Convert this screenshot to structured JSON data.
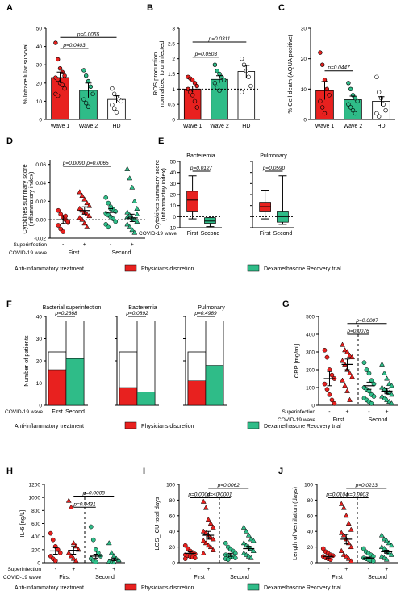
{
  "colors": {
    "red": "#e8211f",
    "green": "#2fbc88",
    "white": "#ffffff",
    "black": "#000000"
  },
  "legend": {
    "title": "Anti-inflammatory treatment",
    "items": [
      {
        "label": "Physicians discretion",
        "color": "#e8211f"
      },
      {
        "label": "Dexamethasone Recovery trial",
        "color": "#2fbc88"
      }
    ]
  },
  "chart_data": [
    {
      "letter": "A",
      "type": "bar",
      "ylabel": "% Intracellular survival",
      "ylim": [
        0,
        50
      ],
      "yticks": [
        0,
        10,
        20,
        30,
        40,
        50
      ],
      "categories": [
        "Wave 1",
        "Wave 2",
        "HD"
      ],
      "values": [
        23,
        16,
        11
      ],
      "errors": [
        3,
        4,
        2
      ],
      "points": [
        [
          42,
          33,
          28,
          26,
          24,
          23,
          22,
          20,
          19,
          17,
          14,
          13
        ],
        [
          27,
          24,
          21,
          18,
          14,
          11,
          9,
          7
        ],
        [
          17,
          14,
          12,
          11,
          10,
          8,
          6,
          4
        ]
      ],
      "pvalues": [
        {
          "text": "p=0.0403",
          "from": 0,
          "to": 1,
          "y": 39
        },
        {
          "text": "p=0.0055",
          "from": 0,
          "to": 2,
          "y": 45
        }
      ]
    },
    {
      "letter": "B",
      "type": "bar",
      "ylabel": "ROS production\nnormalized to uninfected",
      "ylim": [
        0,
        3
      ],
      "yticks": [
        0,
        0.5,
        1,
        1.5,
        2,
        2.5,
        3
      ],
      "categories": [
        "Wave 1",
        "Wave 2",
        "HD"
      ],
      "values": [
        1.0,
        1.32,
        1.58
      ],
      "errors": [
        0.1,
        0.12,
        0.2
      ],
      "points": [
        [
          1.4,
          1.35,
          1.3,
          1.2,
          1.1,
          1.0,
          0.9,
          0.8,
          0.6,
          0.4
        ],
        [
          1.8,
          1.6,
          1.5,
          1.4,
          1.3,
          1.2,
          1.05,
          0.95
        ],
        [
          2.0,
          1.8,
          1.6,
          1.4,
          1.1,
          0.9
        ]
      ],
      "pvalues": [
        {
          "text": "p=0.0503",
          "from": 0,
          "to": 1,
          "y": 2.05
        },
        {
          "text": "p=0.0311",
          "from": 0,
          "to": 2,
          "y": 2.55
        }
      ],
      "dotted": 1.0
    },
    {
      "letter": "C",
      "type": "bar",
      "ylabel": "% Cell death (AQUA positive)",
      "ylim": [
        0,
        30
      ],
      "yticks": [
        0,
        10,
        20,
        30
      ],
      "categories": [
        "Wave 1",
        "Wave 2",
        "HD"
      ],
      "values": [
        9.5,
        6.5,
        6
      ],
      "errors": [
        3,
        1.2,
        1.5
      ],
      "points": [
        [
          22,
          18,
          13,
          10,
          8,
          6,
          4,
          2
        ],
        [
          12,
          10,
          8,
          7,
          6,
          5,
          4,
          3,
          2
        ],
        [
          14,
          9,
          7,
          5,
          3,
          2,
          1
        ]
      ],
      "pvalues": [
        {
          "text": "p=0.0447",
          "from": 0,
          "to": 1,
          "y": 16
        }
      ]
    },
    {
      "letter": "D",
      "type": "dot",
      "ylabel": "Cytokines summary score\n(inflammatory index)",
      "ylim": [
        -0.02,
        0.065
      ],
      "yticks": [
        -0.02,
        0,
        0.02,
        0.04,
        0.06
      ],
      "ytick_labels": [
        "-0.02",
        "0.00",
        "0.02",
        "0.04",
        "0.06"
      ],
      "groups": [
        {
          "color": "#e8211f",
          "shape": "circle",
          "mean": 0.0,
          "sem": 0.004,
          "points": [
            0.01,
            0.006,
            0.003,
            0.0,
            -0.003,
            -0.006,
            -0.01,
            -0.013,
            0.004,
            -0.002
          ]
        },
        {
          "color": "#e8211f",
          "shape": "triangle",
          "mean": 0.01,
          "sem": 0.004,
          "points": [
            0.03,
            0.026,
            0.022,
            0.018,
            0.015,
            0.012,
            0.01,
            0.008,
            0.006,
            0.004,
            0.002,
            0.0,
            -0.004,
            -0.008
          ]
        },
        {
          "color": "#2fbc88",
          "shape": "circle",
          "mean": 0.008,
          "sem": 0.004,
          "points": [
            0.024,
            0.018,
            0.014,
            0.011,
            0.009,
            0.007,
            0.005,
            0.003,
            0.001,
            -0.002,
            -0.005,
            -0.008,
            0.012
          ]
        },
        {
          "color": "#2fbc88",
          "shape": "triangle",
          "mean": 0.002,
          "sem": 0.004,
          "points": [
            0.055,
            0.045,
            0.035,
            0.02,
            0.012,
            0.008,
            0.005,
            0.002,
            0.0,
            -0.002,
            -0.005,
            -0.008,
            -0.011,
            -0.014,
            0.006,
            0.003
          ]
        }
      ],
      "pvalues": [
        {
          "text": "p=0.0090",
          "from": 0,
          "to": 1,
          "y": 0.058
        },
        {
          "text": "p=0.0065",
          "from": 1,
          "to": 2,
          "y": 0.058
        }
      ],
      "dotted": 0,
      "rows": [
        {
          "label": "Superinfection",
          "ticks": [
            "-",
            "+",
            "-",
            "+"
          ]
        },
        {
          "label": "COVID-19 wave",
          "ticks": [
            "First",
            "Second"
          ]
        }
      ]
    },
    {
      "letter": "E",
      "type": "box",
      "ylabel": "Cytokines summary score\n(Inflammatoy index)",
      "ylim": [
        -10,
        50
      ],
      "yticks": [
        -10,
        0,
        10,
        20,
        30,
        40,
        50
      ],
      "subplots": [
        {
          "title": "Bacteremia",
          "pvalue": "p=0.0127",
          "boxes": [
            {
              "color": "#e8211f",
              "min": -2,
              "q1": 5,
              "med": 15,
              "q3": 23,
              "max": 37
            },
            {
              "color": "#2fbc88",
              "min": -9,
              "q1": -6,
              "med": -4,
              "q3": -1,
              "max": -1
            }
          ]
        },
        {
          "title": "Pulmonary",
          "pvalue": "p=0.0590",
          "boxes": [
            {
              "color": "#e8211f",
              "min": -2,
              "q1": 5,
              "med": 9,
              "q3": 13,
              "max": 24
            },
            {
              "color": "#2fbc88",
              "min": -7,
              "q1": -5,
              "med": 0,
              "q3": 5,
              "max": 37
            }
          ]
        }
      ],
      "xlabel": "COVID-19 wave",
      "ticks": [
        "First",
        "Second"
      ],
      "dotted": 0
    },
    {
      "letter": "F",
      "type": "stacked-bar",
      "ylabel": "Number of patients",
      "ylim": [
        0,
        40
      ],
      "yticks": [
        0,
        10,
        20,
        30,
        40
      ],
      "subplots": [
        {
          "title": "Bacterial superinfection",
          "pvalue": "p=0.2668",
          "bars": [
            {
              "total": 24,
              "filled": 16,
              "color": "#e8211f"
            },
            {
              "total": 38,
              "filled": 21,
              "color": "#2fbc88"
            }
          ]
        },
        {
          "title": "Bacteremia",
          "pvalue": "p=0.0892",
          "bars": [
            {
              "total": 24,
              "filled": 8,
              "color": "#e8211f"
            },
            {
              "total": 38,
              "filled": 6,
              "color": "#2fbc88"
            }
          ]
        },
        {
          "title": "Pulmonary",
          "pvalue": "p=0.4989",
          "bars": [
            {
              "total": 24,
              "filled": 11,
              "color": "#e8211f"
            },
            {
              "total": 38,
              "filled": 18,
              "color": "#2fbc88"
            }
          ]
        }
      ],
      "xlabel": "COVID-19 wave",
      "ticks": [
        "First",
        "Second"
      ]
    },
    {
      "letter": "G",
      "type": "dot",
      "ylabel": "CRP [mg/ml]",
      "ylim": [
        0,
        500
      ],
      "yticks": [
        0,
        100,
        200,
        300,
        400,
        500
      ],
      "groups": [
        {
          "color": "#e8211f",
          "shape": "circle",
          "mean": 150,
          "sem": 40,
          "points": [
            310,
            270,
            200,
            170,
            150,
            120,
            90,
            60,
            30,
            10
          ]
        },
        {
          "color": "#e8211f",
          "shape": "triangle",
          "mean": 230,
          "sem": 30,
          "points": [
            340,
            310,
            300,
            280,
            270,
            250,
            230,
            200,
            180,
            160,
            140,
            110,
            80,
            30
          ]
        },
        {
          "color": "#2fbc88",
          "shape": "circle",
          "mean": 110,
          "sem": 20,
          "points": [
            240,
            200,
            180,
            140,
            120,
            100,
            90,
            80,
            60,
            50,
            40,
            30,
            20,
            10
          ]
        },
        {
          "color": "#2fbc88",
          "shape": "triangle",
          "mean": 80,
          "sem": 15,
          "points": [
            230,
            180,
            150,
            120,
            110,
            100,
            90,
            80,
            70,
            60,
            50,
            40,
            30,
            20,
            10
          ]
        }
      ],
      "pvalues": [
        {
          "text": "p=0.0076",
          "from": 1,
          "to": 2,
          "y": 400
        },
        {
          "text": "p=0.0007",
          "from": 1,
          "to": 3,
          "y": 460
        }
      ],
      "rows": [
        {
          "label": "Superinfection",
          "ticks": [
            "-",
            "+",
            "-",
            "+"
          ]
        },
        {
          "label": "COVID-19 wave",
          "ticks": [
            "First",
            "Second"
          ]
        }
      ]
    },
    {
      "letter": "H",
      "type": "dot",
      "ylabel": "IL-6 [ng/L]",
      "ylim": [
        0,
        1200
      ],
      "yticks": [
        0,
        200,
        400,
        600,
        800,
        1000,
        1200
      ],
      "groups": [
        {
          "color": "#e8211f",
          "shape": "circle",
          "mean": 180,
          "sem": 50,
          "points": [
            450,
            350,
            250,
            200,
            150,
            100,
            60,
            30
          ]
        },
        {
          "color": "#e8211f",
          "shape": "triangle",
          "mean": 190,
          "sem": 60,
          "points": [
            950,
            850,
            300,
            250,
            200,
            150,
            100,
            60,
            30
          ]
        },
        {
          "color": "#2fbc88",
          "shape": "circle",
          "mean": 100,
          "sem": 30,
          "points": [
            550,
            350,
            200,
            150,
            100,
            60,
            30,
            10
          ]
        },
        {
          "color": "#2fbc88",
          "shape": "triangle",
          "mean": 50,
          "sem": 20,
          "points": [
            300,
            150,
            100,
            60,
            40,
            20,
            10,
            5
          ]
        }
      ],
      "pvalues": [
        {
          "text": "p=0.0431",
          "from": 1,
          "to": 2,
          "y": 850
        },
        {
          "text": "p=0.0005",
          "from": 1,
          "to": 3,
          "y": 1020
        }
      ],
      "rows": [
        {
          "label": "Superinfection",
          "ticks": [
            "-",
            "+",
            "-",
            "+"
          ]
        },
        {
          "label": "COVID-19 wave",
          "ticks": [
            "First",
            "Second"
          ]
        }
      ]
    },
    {
      "letter": "I",
      "type": "dot",
      "ylabel": "LOS_ICU total days",
      "ylim": [
        0,
        100
      ],
      "yticks": [
        0,
        20,
        40,
        60,
        80,
        100
      ],
      "groups": [
        {
          "color": "#e8211f",
          "shape": "circle",
          "mean": 12,
          "sem": 2,
          "points": [
            22,
            18,
            15,
            13,
            11,
            10,
            9,
            8,
            7,
            6,
            5
          ]
        },
        {
          "color": "#e8211f",
          "shape": "triangle",
          "mean": 35,
          "sem": 5,
          "points": [
            78,
            70,
            55,
            50,
            45,
            40,
            38,
            35,
            32,
            30,
            28,
            25,
            22,
            20,
            16,
            12
          ]
        },
        {
          "color": "#2fbc88",
          "shape": "circle",
          "mean": 10,
          "sem": 2,
          "points": [
            25,
            20,
            17,
            15,
            12,
            10,
            9,
            8,
            7,
            6,
            5,
            4
          ]
        },
        {
          "color": "#2fbc88",
          "shape": "triangle",
          "mean": 18,
          "sem": 3,
          "points": [
            45,
            40,
            35,
            30,
            28,
            25,
            22,
            20,
            18,
            15,
            12,
            10,
            8,
            6
          ]
        }
      ],
      "pvalues": [
        {
          "text": "p=0.0004",
          "from": 0,
          "to": 1,
          "y": 83
        },
        {
          "text": "p=<0.0001",
          "from": 1,
          "to": 2,
          "y": 83
        },
        {
          "text": "p=0.0062",
          "from": 1,
          "to": 3,
          "y": 95
        }
      ]
    },
    {
      "letter": "J",
      "type": "dot",
      "ylabel": "Length of Ventilation (days)",
      "ylim": [
        0,
        100
      ],
      "yticks": [
        0,
        20,
        40,
        60,
        80,
        100
      ],
      "groups": [
        {
          "color": "#e8211f",
          "shape": "circle",
          "mean": 8,
          "sem": 2,
          "points": [
            18,
            14,
            12,
            10,
            9,
            8,
            6,
            5,
            4
          ]
        },
        {
          "color": "#e8211f",
          "shape": "triangle",
          "mean": 30,
          "sem": 6,
          "points": [
            75,
            70,
            60,
            50,
            42,
            38,
            35,
            30,
            25,
            20,
            15,
            10,
            8,
            5,
            2
          ]
        },
        {
          "color": "#2fbc88",
          "shape": "circle",
          "mean": 6,
          "sem": 1,
          "points": [
            18,
            14,
            12,
            10,
            8,
            6,
            5,
            4,
            3,
            2
          ]
        },
        {
          "color": "#2fbc88",
          "shape": "triangle",
          "mean": 14,
          "sem": 2,
          "points": [
            35,
            30,
            28,
            25,
            22,
            20,
            18,
            15,
            12,
            10,
            8,
            6,
            4
          ]
        }
      ],
      "pvalues": [
        {
          "text": "p=0.0104",
          "from": 0,
          "to": 1,
          "y": 83
        },
        {
          "text": "p=0.0003",
          "from": 1,
          "to": 2,
          "y": 83
        },
        {
          "text": "p=0.0233",
          "from": 1,
          "to": 3,
          "y": 95
        }
      ]
    }
  ]
}
